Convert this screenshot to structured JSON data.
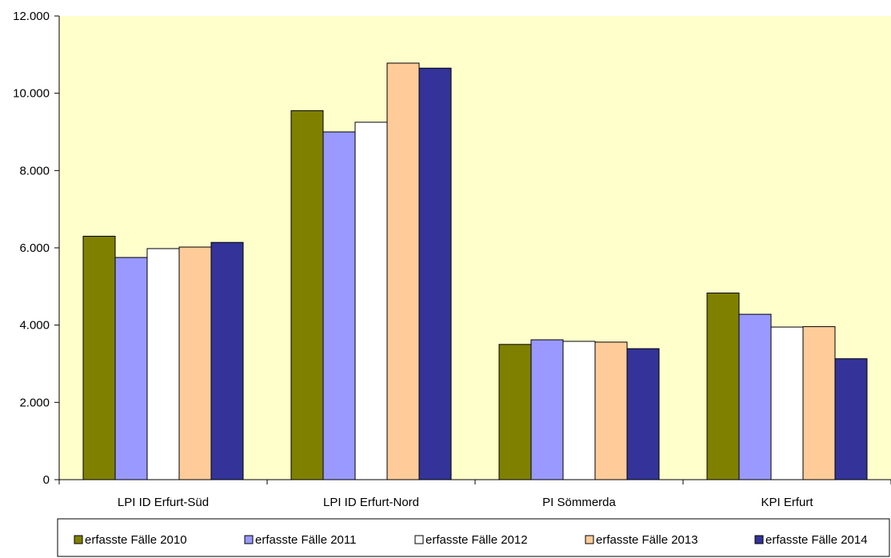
{
  "chart_data": {
    "type": "bar",
    "title": "",
    "xlabel": "",
    "ylabel": "",
    "categories": [
      "LPI ID Erfurt-Süd",
      "LPI ID Erfurt-Nord",
      "PI Sömmerda",
      "KPI Erfurt"
    ],
    "series": [
      {
        "name": "erfasste Fälle 2010",
        "color": "#808000",
        "values": [
          6300,
          9550,
          3500,
          4830
        ]
      },
      {
        "name": "erfasste Fälle 2011",
        "color": "#9999ff",
        "values": [
          5750,
          9000,
          3620,
          4280
        ]
      },
      {
        "name": "erfasste Fälle 2012",
        "color": "#ffffff",
        "values": [
          5980,
          9250,
          3580,
          3950
        ]
      },
      {
        "name": "erfasste Fälle 2013",
        "color": "#ffcc99",
        "values": [
          6020,
          10780,
          3560,
          3960
        ]
      },
      {
        "name": "erfasste Fälle 2014",
        "color": "#333399",
        "values": [
          6140,
          10650,
          3390,
          3130
        ]
      }
    ],
    "ylim": [
      0,
      12000
    ],
    "yticks": [
      0,
      2000,
      4000,
      6000,
      8000,
      10000,
      12000
    ],
    "ytick_labels": [
      "0",
      "2.000",
      "4.000",
      "6.000",
      "8.000",
      "10.000",
      "12.000"
    ],
    "grid": false,
    "plot_background": "#ffffcc",
    "legend_position": "bottom"
  }
}
